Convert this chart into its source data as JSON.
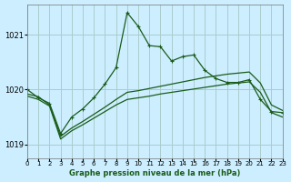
{
  "title": "Graphe pression niveau de la mer (hPa)",
  "background_color": "#cceeff",
  "grid_color": "#aacccc",
  "line_color": "#1a5c1a",
  "x_min": 0,
  "x_max": 23,
  "y_min": 1018.75,
  "y_max": 1021.55,
  "yticks": [
    1019,
    1020,
    1021
  ],
  "xticks": [
    0,
    1,
    2,
    3,
    4,
    5,
    6,
    7,
    8,
    9,
    10,
    11,
    12,
    13,
    14,
    15,
    16,
    17,
    18,
    19,
    20,
    21,
    22,
    23
  ],
  "line1_x": [
    0,
    1,
    2,
    3,
    4,
    5,
    6,
    7,
    8,
    9,
    10,
    11,
    12,
    13,
    14,
    15,
    16,
    17,
    18,
    19,
    20,
    21,
    22,
    23
  ],
  "line1_y": [
    1020.0,
    1019.85,
    1019.75,
    1019.2,
    1019.5,
    1019.65,
    1019.85,
    1020.1,
    1020.4,
    1021.4,
    1021.15,
    1020.8,
    1020.78,
    1020.52,
    1020.6,
    1020.63,
    1020.35,
    1020.2,
    1020.13,
    1020.13,
    1020.18,
    1019.82,
    1019.6,
    1019.58
  ],
  "line2_x": [
    0,
    1,
    2,
    3,
    4,
    5,
    6,
    7,
    8,
    9,
    10,
    11,
    12,
    13,
    14,
    15,
    16,
    17,
    18,
    19,
    20,
    21,
    22,
    23
  ],
  "line2_y": [
    1019.92,
    1019.87,
    1019.72,
    1019.15,
    1019.3,
    1019.42,
    1019.55,
    1019.68,
    1019.82,
    1019.95,
    1019.98,
    1020.02,
    1020.06,
    1020.1,
    1020.14,
    1020.18,
    1020.22,
    1020.25,
    1020.28,
    1020.3,
    1020.32,
    1020.12,
    1019.72,
    1019.62
  ],
  "line3_x": [
    0,
    1,
    2,
    3,
    4,
    5,
    6,
    7,
    8,
    9,
    10,
    11,
    12,
    13,
    14,
    15,
    16,
    17,
    18,
    19,
    20,
    21,
    22,
    23
  ],
  "line3_y": [
    1019.88,
    1019.82,
    1019.7,
    1019.1,
    1019.25,
    1019.36,
    1019.48,
    1019.6,
    1019.72,
    1019.82,
    1019.85,
    1019.88,
    1019.92,
    1019.95,
    1019.98,
    1020.01,
    1020.04,
    1020.07,
    1020.1,
    1020.12,
    1020.14,
    1019.95,
    1019.58,
    1019.5
  ]
}
